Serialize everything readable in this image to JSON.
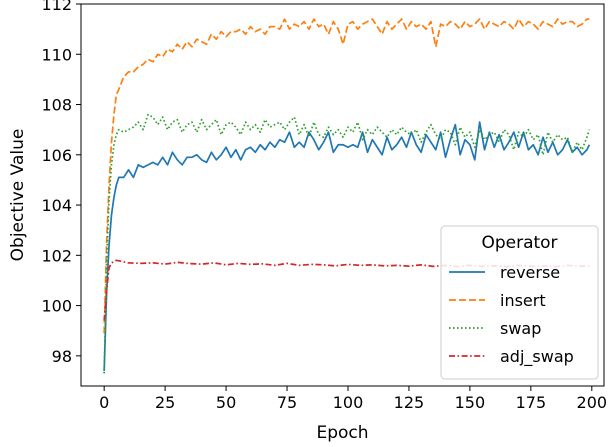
{
  "chart_data": {
    "type": "line",
    "xlabel": "Epoch",
    "ylabel": "Objective Value",
    "xlim": [
      -9.5,
      205
    ],
    "ylim": [
      96.8,
      112.0
    ],
    "xticks": [
      0,
      25,
      50,
      75,
      100,
      125,
      150,
      175,
      200
    ],
    "yticks": [
      98,
      100,
      102,
      104,
      106,
      108,
      110,
      112
    ],
    "grid": false,
    "legend": {
      "title": "Operator",
      "placement": "lower-right"
    },
    "series": [
      {
        "name": "reverse",
        "color": "#1f77b4",
        "dash": "solid",
        "x": [
          0,
          1,
          2,
          3,
          4,
          5,
          6,
          8,
          10,
          12,
          14,
          16,
          18,
          20,
          22,
          24,
          26,
          28,
          30,
          32,
          34,
          36,
          38,
          40,
          42,
          44,
          46,
          48,
          50,
          52,
          54,
          56,
          58,
          60,
          62,
          64,
          66,
          68,
          70,
          72,
          74,
          76,
          78,
          80,
          82,
          84,
          86,
          88,
          90,
          92,
          94,
          96,
          98,
          100,
          102,
          104,
          106,
          108,
          110,
          112,
          114,
          116,
          118,
          120,
          122,
          124,
          126,
          128,
          130,
          132,
          134,
          136,
          138,
          140,
          142,
          144,
          146,
          148,
          150,
          152,
          154,
          156,
          158,
          160,
          162,
          164,
          166,
          168,
          170,
          172,
          174,
          176,
          178,
          180,
          182,
          184,
          186,
          188,
          190,
          192,
          194,
          196,
          198,
          199
        ],
        "y": [
          97.4,
          100.5,
          102.4,
          103.6,
          104.3,
          104.8,
          105.1,
          105.1,
          105.4,
          105.1,
          105.6,
          105.5,
          105.6,
          105.7,
          105.6,
          105.9,
          105.6,
          106.1,
          105.8,
          105.6,
          105.9,
          105.9,
          106.0,
          105.8,
          105.7,
          106.1,
          105.8,
          106.0,
          106.3,
          105.9,
          106.2,
          105.8,
          106.2,
          106.3,
          106.1,
          106.4,
          106.2,
          106.5,
          106.3,
          106.6,
          106.5,
          106.9,
          106.3,
          106.5,
          106.3,
          106.9,
          106.6,
          106.2,
          106.5,
          106.9,
          106.1,
          106.4,
          106.4,
          106.3,
          106.4,
          106.3,
          106.9,
          106.1,
          106.6,
          106.3,
          106.0,
          106.7,
          106.2,
          106.4,
          106.7,
          106.3,
          106.9,
          106.4,
          106.1,
          106.8,
          106.5,
          106.2,
          106.9,
          105.9,
          106.6,
          107.2,
          106.0,
          106.6,
          106.4,
          105.8,
          107.3,
          106.2,
          106.9,
          106.3,
          106.8,
          106.2,
          106.5,
          106.9,
          106.3,
          106.9,
          106.2,
          106.4,
          106.0,
          106.7,
          106.1,
          106.5,
          106.0,
          106.2,
          106.6,
          106.1,
          106.3,
          106.0,
          106.2,
          106.4
        ]
      },
      {
        "name": "insert",
        "color": "#ff7f0e",
        "dash": "dashed",
        "x": [
          0,
          1,
          2,
          3,
          4,
          5,
          6,
          8,
          10,
          12,
          14,
          16,
          18,
          20,
          22,
          24,
          26,
          28,
          30,
          32,
          34,
          36,
          38,
          40,
          42,
          44,
          46,
          48,
          50,
          52,
          54,
          56,
          58,
          60,
          62,
          64,
          66,
          68,
          70,
          72,
          74,
          76,
          78,
          80,
          82,
          84,
          86,
          88,
          90,
          92,
          94,
          96,
          98,
          100,
          102,
          104,
          106,
          108,
          110,
          112,
          114,
          116,
          118,
          120,
          122,
          124,
          126,
          128,
          130,
          132,
          134,
          136,
          138,
          140,
          142,
          144,
          146,
          148,
          150,
          152,
          154,
          156,
          158,
          160,
          162,
          164,
          166,
          168,
          170,
          172,
          174,
          176,
          178,
          180,
          182,
          184,
          186,
          188,
          190,
          192,
          194,
          196,
          198,
          199
        ],
        "y": [
          98.9,
          102.5,
          104.8,
          106.5,
          107.6,
          108.4,
          108.6,
          109.1,
          109.3,
          109.3,
          109.5,
          109.6,
          109.8,
          109.7,
          110.0,
          109.9,
          110.2,
          110.1,
          110.4,
          110.2,
          110.5,
          110.3,
          110.6,
          110.5,
          110.4,
          110.8,
          110.6,
          110.9,
          110.7,
          110.9,
          110.9,
          111.0,
          110.8,
          111.1,
          110.9,
          111.0,
          110.8,
          111.1,
          111.1,
          111.0,
          111.4,
          111.0,
          111.2,
          111.1,
          111.3,
          111.0,
          111.4,
          111.1,
          111.2,
          110.8,
          111.3,
          111.0,
          110.4,
          111.2,
          111.3,
          111.0,
          111.2,
          111.3,
          111.4,
          111.1,
          110.8,
          111.3,
          111.0,
          111.2,
          111.4,
          111.0,
          111.3,
          111.1,
          111.2,
          111.0,
          111.3,
          110.3,
          111.2,
          111.1,
          111.3,
          111.2,
          111.0,
          111.3,
          111.1,
          111.2,
          111.4,
          111.0,
          111.3,
          111.2,
          111.1,
          111.3,
          111.2,
          111.0,
          111.4,
          111.1,
          111.3,
          111.2,
          111.0,
          111.3,
          111.2,
          111.1,
          111.4,
          111.2,
          111.3,
          111.3,
          111.1,
          111.2,
          111.4,
          111.4
        ]
      },
      {
        "name": "swap",
        "color": "#2ca02c",
        "dash": "dotted",
        "x": [
          0,
          1,
          2,
          3,
          4,
          5,
          6,
          8,
          10,
          12,
          14,
          16,
          18,
          20,
          22,
          24,
          26,
          28,
          30,
          32,
          34,
          36,
          38,
          40,
          42,
          44,
          46,
          48,
          50,
          52,
          54,
          56,
          58,
          60,
          62,
          64,
          66,
          68,
          70,
          72,
          74,
          76,
          78,
          80,
          82,
          84,
          86,
          88,
          90,
          92,
          94,
          96,
          98,
          100,
          102,
          104,
          106,
          108,
          110,
          112,
          114,
          116,
          118,
          120,
          122,
          124,
          126,
          128,
          130,
          132,
          134,
          136,
          138,
          140,
          142,
          144,
          146,
          148,
          150,
          152,
          154,
          156,
          158,
          160,
          162,
          164,
          166,
          168,
          170,
          172,
          174,
          176,
          178,
          180,
          182,
          184,
          186,
          188,
          190,
          192,
          194,
          196,
          198,
          199
        ],
        "y": [
          97.3,
          101.8,
          104.2,
          105.6,
          106.4,
          106.8,
          107.0,
          106.9,
          107.0,
          107.1,
          107.3,
          107.0,
          107.6,
          107.5,
          107.2,
          107.5,
          107.0,
          107.3,
          107.4,
          106.9,
          107.2,
          107.3,
          106.9,
          107.4,
          107.0,
          107.2,
          107.4,
          106.8,
          107.2,
          107.3,
          107.1,
          106.8,
          107.3,
          107.0,
          107.2,
          106.9,
          107.4,
          107.1,
          107.2,
          107.3,
          107.0,
          107.3,
          107.5,
          106.8,
          107.2,
          106.7,
          107.3,
          106.8,
          106.7,
          107.1,
          106.8,
          107.0,
          106.7,
          107.1,
          106.9,
          107.3,
          106.6,
          107.0,
          106.8,
          107.1,
          106.9,
          106.7,
          107.0,
          106.8,
          107.1,
          106.9,
          106.8,
          107.0,
          106.5,
          106.9,
          107.2,
          106.8,
          106.6,
          107.0,
          106.9,
          106.4,
          107.1,
          106.7,
          106.9,
          106.3,
          107.0,
          106.6,
          106.8,
          106.9,
          106.5,
          107.0,
          106.8,
          106.2,
          106.9,
          106.7,
          107.0,
          106.6,
          106.8,
          106.0,
          106.9,
          106.5,
          106.8,
          106.6,
          106.7,
          106.1,
          106.5,
          106.2,
          106.7,
          107.0
        ]
      },
      {
        "name": "adj_swap",
        "color": "#d62728",
        "dash": "dashdot",
        "x": [
          0,
          1,
          2,
          3,
          4,
          5,
          10,
          15,
          20,
          25,
          30,
          35,
          40,
          45,
          50,
          55,
          60,
          65,
          70,
          75,
          80,
          85,
          90,
          95,
          100,
          105,
          110,
          115,
          120,
          125,
          130,
          135,
          140,
          145,
          150,
          155,
          160,
          165,
          170,
          175,
          180,
          185,
          190,
          195,
          199
        ],
        "y": [
          99.4,
          100.6,
          101.5,
          101.7,
          101.75,
          101.8,
          101.7,
          101.68,
          101.7,
          101.65,
          101.72,
          101.67,
          101.65,
          101.7,
          101.62,
          101.68,
          101.64,
          101.66,
          101.6,
          101.68,
          101.6,
          101.64,
          101.62,
          101.58,
          101.64,
          101.6,
          101.62,
          101.58,
          101.6,
          101.57,
          101.62,
          101.56,
          101.6,
          101.55,
          101.6,
          101.56,
          101.58,
          101.55,
          101.6,
          101.56,
          101.58,
          101.55,
          101.6,
          101.57,
          101.58
        ]
      }
    ]
  }
}
